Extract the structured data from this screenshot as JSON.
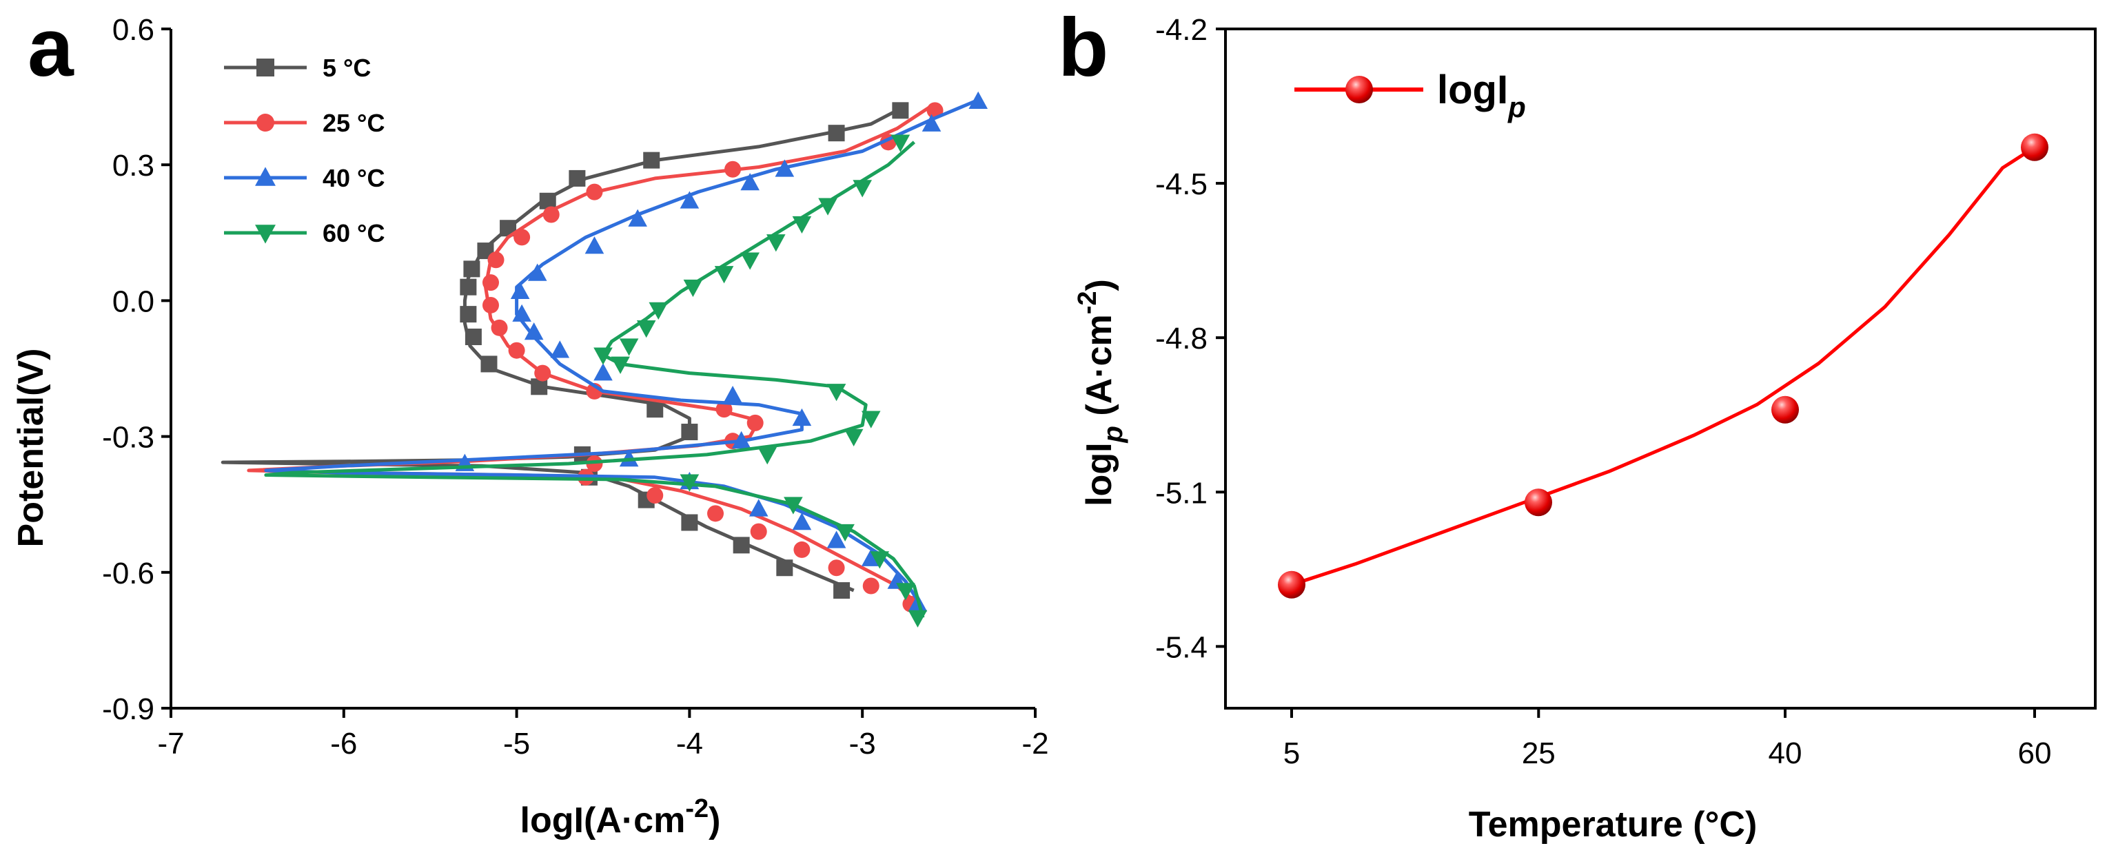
{
  "panels": {
    "a": {
      "letter": "a",
      "xlabel": "logI(A·cm",
      "xlabel_sup": "-2",
      "xlabel_end": ")",
      "ylabel": "Potential(V)",
      "legend": [
        "5 °C",
        "25 °C",
        "40 °C",
        "60 °C"
      ]
    },
    "b": {
      "letter": "b",
      "xlabel": "Temperature (°C)",
      "ylabel_main": "logI",
      "ylabel_sub": "p",
      "ylabel_unit": " (A·cm",
      "ylabel_sup": "-2",
      "ylabel_end": ")",
      "legend_main": "logI",
      "legend_sub": "p"
    }
  },
  "chart_data": [
    {
      "type": "line",
      "panel": "a",
      "xlim": [
        -7,
        -2
      ],
      "ylim": [
        -0.9,
        0.6
      ],
      "xticks": [
        "-7",
        "-6",
        "-5",
        "-4",
        "-3",
        "-2"
      ],
      "yticks": [
        "-0.9",
        "-0.6",
        "-0.3",
        "0.0",
        "0.3",
        "0.6"
      ],
      "xtick_values": [
        -7,
        -6,
        -5,
        -4,
        -3,
        -2
      ],
      "ytick_values": [
        -0.9,
        -0.6,
        -0.3,
        0.0,
        0.3,
        0.6
      ],
      "legend_position": "top-left",
      "series": [
        {
          "name": "5 °C",
          "color": "#555555",
          "marker": "square",
          "points": [
            [
              -2.8,
              0.42
            ],
            [
              -2.95,
              0.39
            ],
            [
              -3.2,
              0.37
            ],
            [
              -3.6,
              0.34
            ],
            [
              -4.2,
              0.31
            ],
            [
              -4.6,
              0.27
            ],
            [
              -4.85,
              0.22
            ],
            [
              -5.05,
              0.16
            ],
            [
              -5.2,
              0.11
            ],
            [
              -5.28,
              0.05
            ],
            [
              -5.3,
              0.0
            ],
            [
              -5.3,
              -0.05
            ],
            [
              -5.27,
              -0.1
            ],
            [
              -5.15,
              -0.15
            ],
            [
              -4.85,
              -0.19
            ],
            [
              -4.5,
              -0.21
            ],
            [
              -4.15,
              -0.23
            ],
            [
              -4.0,
              -0.26
            ],
            [
              -4.0,
              -0.3
            ],
            [
              -4.2,
              -0.33
            ],
            [
              -4.7,
              -0.345
            ],
            [
              -5.3,
              -0.352
            ],
            [
              -6.0,
              -0.355
            ],
            [
              -6.7,
              -0.357
            ],
            [
              -6.2,
              -0.36
            ],
            [
              -5.2,
              -0.365
            ],
            [
              -4.6,
              -0.38
            ],
            [
              -4.35,
              -0.41
            ],
            [
              -4.15,
              -0.45
            ],
            [
              -3.9,
              -0.5
            ],
            [
              -3.6,
              -0.55
            ],
            [
              -3.3,
              -0.6
            ],
            [
              -3.05,
              -0.64
            ]
          ],
          "markers": [
            [
              -2.78,
              0.42
            ],
            [
              -3.15,
              0.37
            ],
            [
              -4.22,
              0.31
            ],
            [
              -4.65,
              0.27
            ],
            [
              -4.82,
              0.22
            ],
            [
              -5.05,
              0.16
            ],
            [
              -5.18,
              0.11
            ],
            [
              -5.26,
              0.07
            ],
            [
              -5.28,
              0.03
            ],
            [
              -5.28,
              -0.03
            ],
            [
              -5.25,
              -0.08
            ],
            [
              -5.16,
              -0.14
            ],
            [
              -4.87,
              -0.19
            ],
            [
              -4.2,
              -0.24
            ],
            [
              -4.0,
              -0.29
            ],
            [
              -4.62,
              -0.34
            ],
            [
              -4.58,
              -0.39
            ],
            [
              -4.25,
              -0.44
            ],
            [
              -4.0,
              -0.49
            ],
            [
              -3.7,
              -0.54
            ],
            [
              -3.45,
              -0.59
            ],
            [
              -3.12,
              -0.64
            ]
          ]
        },
        {
          "name": "25 °C",
          "color": "#f04a4a",
          "marker": "circle",
          "points": [
            [
              -2.6,
              0.43
            ],
            [
              -2.8,
              0.38
            ],
            [
              -3.1,
              0.33
            ],
            [
              -3.6,
              0.295
            ],
            [
              -4.2,
              0.27
            ],
            [
              -4.6,
              0.235
            ],
            [
              -4.85,
              0.19
            ],
            [
              -5.05,
              0.14
            ],
            [
              -5.15,
              0.09
            ],
            [
              -5.18,
              0.03
            ],
            [
              -5.15,
              -0.04
            ],
            [
              -5.05,
              -0.1
            ],
            [
              -4.85,
              -0.16
            ],
            [
              -4.55,
              -0.2
            ],
            [
              -4.2,
              -0.22
            ],
            [
              -3.85,
              -0.24
            ],
            [
              -3.6,
              -0.265
            ],
            [
              -3.65,
              -0.3
            ],
            [
              -3.95,
              -0.32
            ],
            [
              -4.6,
              -0.34
            ],
            [
              -5.3,
              -0.355
            ],
            [
              -6.0,
              -0.365
            ],
            [
              -6.55,
              -0.375
            ],
            [
              -6.0,
              -0.38
            ],
            [
              -5.0,
              -0.385
            ],
            [
              -4.45,
              -0.39
            ],
            [
              -4.05,
              -0.42
            ],
            [
              -3.7,
              -0.46
            ],
            [
              -3.4,
              -0.51
            ],
            [
              -3.1,
              -0.57
            ],
            [
              -2.8,
              -0.63
            ],
            [
              -2.65,
              -0.68
            ]
          ],
          "markers": [
            [
              -2.58,
              0.42
            ],
            [
              -2.85,
              0.35
            ],
            [
              -3.75,
              0.29
            ],
            [
              -4.55,
              0.24
            ],
            [
              -4.8,
              0.19
            ],
            [
              -4.97,
              0.14
            ],
            [
              -5.12,
              0.09
            ],
            [
              -5.15,
              0.04
            ],
            [
              -5.15,
              -0.01
            ],
            [
              -5.1,
              -0.06
            ],
            [
              -5.0,
              -0.11
            ],
            [
              -4.85,
              -0.16
            ],
            [
              -4.55,
              -0.2
            ],
            [
              -3.8,
              -0.24
            ],
            [
              -3.62,
              -0.27
            ],
            [
              -3.75,
              -0.31
            ],
            [
              -4.55,
              -0.36
            ],
            [
              -4.6,
              -0.39
            ],
            [
              -4.2,
              -0.43
            ],
            [
              -3.85,
              -0.47
            ],
            [
              -3.6,
              -0.51
            ],
            [
              -3.35,
              -0.55
            ],
            [
              -3.15,
              -0.59
            ],
            [
              -2.95,
              -0.63
            ],
            [
              -2.72,
              -0.67
            ]
          ]
        },
        {
          "name": "40 °C",
          "color": "#2f6fdc",
          "marker": "triangle-up",
          "points": [
            [
              -2.35,
              0.44
            ],
            [
              -2.6,
              0.4
            ],
            [
              -3.0,
              0.33
            ],
            [
              -3.5,
              0.29
            ],
            [
              -3.95,
              0.24
            ],
            [
              -4.3,
              0.19
            ],
            [
              -4.6,
              0.14
            ],
            [
              -4.85,
              0.08
            ],
            [
              -5.0,
              0.03
            ],
            [
              -5.0,
              -0.03
            ],
            [
              -4.9,
              -0.08
            ],
            [
              -4.75,
              -0.14
            ],
            [
              -4.5,
              -0.2
            ],
            [
              -4.05,
              -0.22
            ],
            [
              -3.6,
              -0.23
            ],
            [
              -3.35,
              -0.25
            ],
            [
              -3.35,
              -0.285
            ],
            [
              -3.7,
              -0.31
            ],
            [
              -4.4,
              -0.335
            ],
            [
              -5.2,
              -0.35
            ],
            [
              -6.0,
              -0.365
            ],
            [
              -6.45,
              -0.375
            ],
            [
              -6.0,
              -0.38
            ],
            [
              -5.0,
              -0.385
            ],
            [
              -4.2,
              -0.39
            ],
            [
              -3.8,
              -0.41
            ],
            [
              -3.45,
              -0.45
            ],
            [
              -3.15,
              -0.5
            ],
            [
              -2.9,
              -0.56
            ],
            [
              -2.75,
              -0.62
            ],
            [
              -2.65,
              -0.68
            ]
          ],
          "markers": [
            [
              -2.33,
              0.44
            ],
            [
              -2.6,
              0.39
            ],
            [
              -3.45,
              0.29
            ],
            [
              -3.65,
              0.26
            ],
            [
              -4.0,
              0.22
            ],
            [
              -4.3,
              0.18
            ],
            [
              -4.55,
              0.12
            ],
            [
              -4.88,
              0.06
            ],
            [
              -4.98,
              0.02
            ],
            [
              -4.97,
              -0.03
            ],
            [
              -4.9,
              -0.07
            ],
            [
              -4.75,
              -0.11
            ],
            [
              -4.5,
              -0.16
            ],
            [
              -3.75,
              -0.21
            ],
            [
              -3.35,
              -0.26
            ],
            [
              -3.7,
              -0.31
            ],
            [
              -4.35,
              -0.35
            ],
            [
              -5.3,
              -0.36
            ],
            [
              -4.0,
              -0.4
            ],
            [
              -3.6,
              -0.46
            ],
            [
              -3.35,
              -0.49
            ],
            [
              -3.15,
              -0.53
            ],
            [
              -2.95,
              -0.57
            ],
            [
              -2.8,
              -0.62
            ],
            [
              -2.68,
              -0.67
            ]
          ]
        },
        {
          "name": "60 °C",
          "color": "#1aa05a",
          "marker": "triangle-down",
          "points": [
            [
              -2.7,
              0.35
            ],
            [
              -2.85,
              0.3
            ],
            [
              -3.15,
              0.23
            ],
            [
              -3.45,
              0.16
            ],
            [
              -3.75,
              0.09
            ],
            [
              -4.05,
              0.02
            ],
            [
              -4.25,
              -0.04
            ],
            [
              -4.45,
              -0.09
            ],
            [
              -4.5,
              -0.12
            ],
            [
              -4.4,
              -0.14
            ],
            [
              -4.0,
              -0.16
            ],
            [
              -3.5,
              -0.175
            ],
            [
              -3.15,
              -0.19
            ],
            [
              -2.98,
              -0.23
            ],
            [
              -3.0,
              -0.275
            ],
            [
              -3.3,
              -0.31
            ],
            [
              -3.9,
              -0.34
            ],
            [
              -4.7,
              -0.36
            ],
            [
              -5.5,
              -0.37
            ],
            [
              -6.3,
              -0.38
            ],
            [
              -6.45,
              -0.385
            ],
            [
              -5.5,
              -0.39
            ],
            [
              -4.4,
              -0.395
            ],
            [
              -3.85,
              -0.41
            ],
            [
              -3.4,
              -0.45
            ],
            [
              -3.05,
              -0.51
            ],
            [
              -2.82,
              -0.57
            ],
            [
              -2.7,
              -0.63
            ],
            [
              -2.65,
              -0.7
            ]
          ],
          "markers": [
            [
              -2.78,
              0.35
            ],
            [
              -3.0,
              0.25
            ],
            [
              -3.2,
              0.21
            ],
            [
              -3.35,
              0.17
            ],
            [
              -3.5,
              0.13
            ],
            [
              -3.65,
              0.09
            ],
            [
              -3.8,
              0.06
            ],
            [
              -3.98,
              0.03
            ],
            [
              -4.18,
              -0.02
            ],
            [
              -4.25,
              -0.06
            ],
            [
              -4.35,
              -0.1
            ],
            [
              -4.5,
              -0.12
            ],
            [
              -4.4,
              -0.14
            ],
            [
              -3.15,
              -0.2
            ],
            [
              -2.95,
              -0.26
            ],
            [
              -3.05,
              -0.3
            ],
            [
              -3.55,
              -0.34
            ],
            [
              -4.0,
              -0.4
            ],
            [
              -3.4,
              -0.45
            ],
            [
              -3.1,
              -0.51
            ],
            [
              -2.9,
              -0.57
            ],
            [
              -2.75,
              -0.64
            ],
            [
              -2.68,
              -0.7
            ]
          ]
        }
      ]
    },
    {
      "type": "line",
      "panel": "b",
      "xlim": [
        -0.05,
        3.7
      ],
      "ylim": [
        -5.52,
        -4.2
      ],
      "categories": [
        "5",
        "25",
        "40",
        "60"
      ],
      "yticks": [
        "-4.2",
        "-4.5",
        "-4.8",
        "-5.1",
        "-5.4"
      ],
      "ytick_values": [
        -4.2,
        -4.5,
        -4.8,
        -5.1,
        -5.4
      ],
      "legend_position": "top-left",
      "series": [
        {
          "name": "logIp",
          "color": "#ff0000",
          "marker": "sphere",
          "values": [
            -5.28,
            -5.12,
            -4.94,
            -4.43
          ],
          "fit": [
            [
              0.5,
              -5.28
            ],
            [
              0.8,
              -5.24
            ],
            [
              1.2,
              -5.18
            ],
            [
              1.6,
              -5.12
            ],
            [
              2.0,
              -5.06
            ],
            [
              2.4,
              -4.99
            ],
            [
              2.7,
              -4.93
            ],
            [
              2.99,
              -4.85
            ],
            [
              3.3,
              -4.74
            ],
            [
              3.6,
              -4.6
            ],
            [
              3.85,
              -4.47
            ],
            [
              4.0,
              -4.43
            ]
          ]
        }
      ]
    }
  ]
}
